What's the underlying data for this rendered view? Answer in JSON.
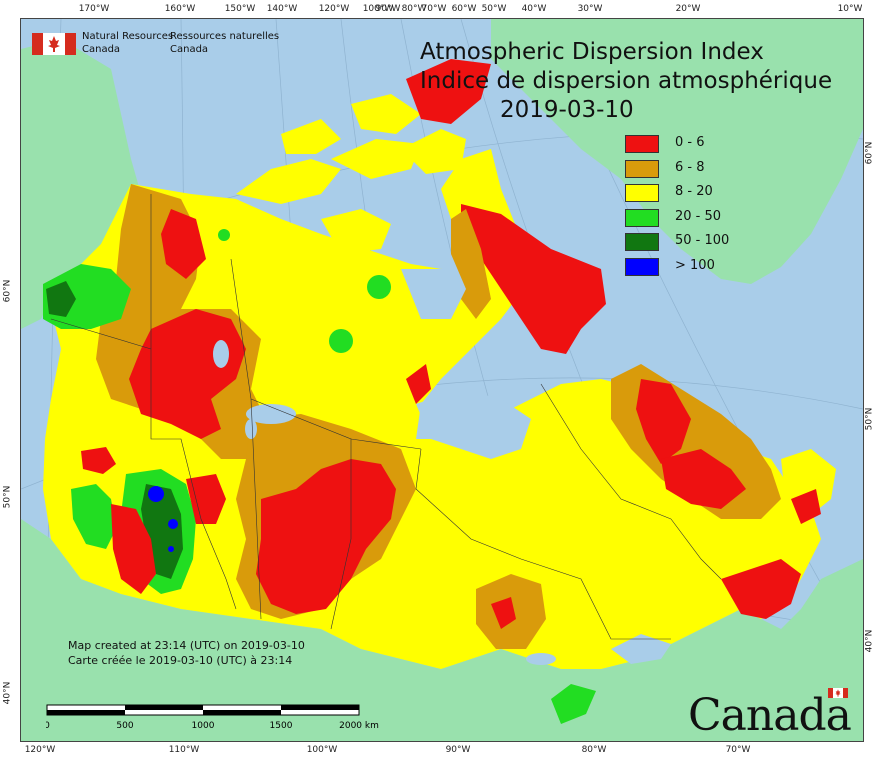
{
  "map": {
    "title_en": "Atmospheric Dispersion Index",
    "title_fr": "Indice de dispersion atmosphérique",
    "date": "2019-03-10"
  },
  "agency": {
    "name_en_line1": "Natural Resources",
    "name_en_line2": "Canada",
    "name_fr_line1": "Ressources naturelles",
    "name_fr_line2": "Canada",
    "flag_colors": [
      "#d52b1e",
      "#ffffff"
    ]
  },
  "legend": [
    {
      "label": "0 - 6",
      "color": "#ee1111"
    },
    {
      "label": "6 - 8",
      "color": "#d99b0b"
    },
    {
      "label": "8 - 20",
      "color": "#ffff00"
    },
    {
      "label": "20 - 50",
      "color": "#22dd22"
    },
    {
      "label": "50 - 100",
      "color": "#117711"
    },
    {
      "label": "> 100",
      "color": "#0000ff"
    }
  ],
  "credits": {
    "line_en": "Map created at 23:14 (UTC) on 2019-03-10",
    "line_fr": "Carte créée le 2019-03-10 (UTC) à 23:14"
  },
  "scale": {
    "labels": [
      "0",
      "500",
      "1000",
      "1500",
      "2000 km"
    ]
  },
  "graticule": {
    "top": [
      "170°W",
      "160°W",
      "150°W",
      "140°W",
      "120°W",
      "100°W",
      "90°W",
      "80°W",
      "70°W",
      "60°W",
      "50°W",
      "40°W",
      "30°W",
      "20°W",
      "10°W"
    ],
    "bottom": [
      "120°W",
      "110°W",
      "100°W",
      "90°W",
      "80°W",
      "70°W"
    ],
    "left": [
      "60°N",
      "50°N",
      "40°N"
    ],
    "right": [
      "60°N",
      "50°N",
      "40°N"
    ]
  },
  "wordmark": "Canada",
  "colors": {
    "ocean": "#a9cde9",
    "foreign_land": "#99e1ad"
  }
}
